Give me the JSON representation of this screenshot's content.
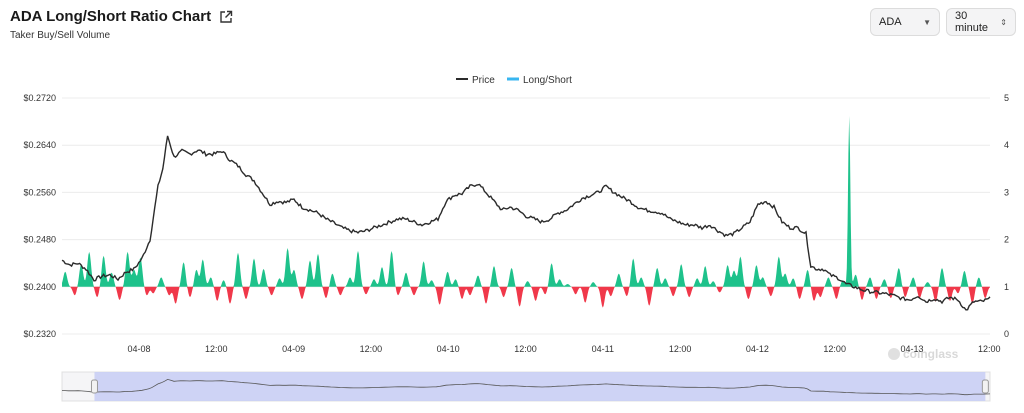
{
  "header": {
    "title": "ADA Long/Short Ratio Chart",
    "subtitle": "Taker Buy/Sell Volume",
    "coin_select": "ADA",
    "interval_select": "30 minute"
  },
  "watermark": "coinglass",
  "colors": {
    "price": "#2b2b2b",
    "long": "#1ec28b",
    "short": "#f0384a",
    "legend_ls": "#38b6f0",
    "navigator": "#c7cdf5"
  },
  "chart_data": {
    "type": "line",
    "legend": [
      "Price",
      "Long/Short"
    ],
    "x_ticks": [
      "04-08",
      "12:00",
      "04-09",
      "12:00",
      "04-10",
      "12:00",
      "04-11",
      "12:00",
      "04-12",
      "12:00",
      "04-13",
      "12:00"
    ],
    "y_left": {
      "ticks": [
        "$0.2720",
        "$0.2640",
        "$0.2560",
        "$0.2480",
        "$0.2400",
        "$0.2320"
      ],
      "range": [
        0.232,
        0.272
      ]
    },
    "y_right": {
      "ticks": [
        "5",
        "4",
        "3",
        "2",
        "1",
        "0"
      ],
      "range": [
        0,
        5
      ]
    },
    "baseline_ratio": 1,
    "price_keypoints": [
      [
        0,
        0.2445
      ],
      [
        5,
        0.2437
      ],
      [
        10,
        0.244
      ],
      [
        15,
        0.243
      ],
      [
        20,
        0.2412
      ],
      [
        25,
        0.2418
      ],
      [
        30,
        0.242
      ],
      [
        35,
        0.2413
      ],
      [
        40,
        0.2425
      ],
      [
        45,
        0.243
      ],
      [
        50,
        0.2448
      ],
      [
        55,
        0.248
      ],
      [
        60,
        0.257
      ],
      [
        63,
        0.26
      ],
      [
        66,
        0.2656
      ],
      [
        70,
        0.262
      ],
      [
        75,
        0.263
      ],
      [
        80,
        0.2625
      ],
      [
        85,
        0.2632
      ],
      [
        90,
        0.2625
      ],
      [
        95,
        0.2625
      ],
      [
        100,
        0.263
      ],
      [
        105,
        0.2615
      ],
      [
        110,
        0.2605
      ],
      [
        115,
        0.259
      ],
      [
        120,
        0.258
      ],
      [
        125,
        0.256
      ],
      [
        130,
        0.254
      ],
      [
        135,
        0.2545
      ],
      [
        140,
        0.2543
      ],
      [
        145,
        0.2548
      ],
      [
        150,
        0.2535
      ],
      [
        155,
        0.253
      ],
      [
        160,
        0.2525
      ],
      [
        165,
        0.2515
      ],
      [
        170,
        0.2508
      ],
      [
        175,
        0.25
      ],
      [
        180,
        0.2495
      ],
      [
        185,
        0.2492
      ],
      [
        190,
        0.2495
      ],
      [
        195,
        0.25
      ],
      [
        200,
        0.2505
      ],
      [
        205,
        0.251
      ],
      [
        210,
        0.2515
      ],
      [
        215,
        0.2515
      ],
      [
        220,
        0.251
      ],
      [
        225,
        0.2505
      ],
      [
        230,
        0.251
      ],
      [
        235,
        0.2515
      ],
      [
        240,
        0.2545
      ],
      [
        245,
        0.2555
      ],
      [
        250,
        0.2558
      ],
      [
        255,
        0.257
      ],
      [
        260,
        0.2575
      ],
      [
        265,
        0.256
      ],
      [
        270,
        0.2545
      ],
      [
        275,
        0.253
      ],
      [
        280,
        0.2535
      ],
      [
        285,
        0.253
      ],
      [
        290,
        0.252
      ],
      [
        295,
        0.2515
      ],
      [
        300,
        0.251
      ],
      [
        305,
        0.2515
      ],
      [
        310,
        0.2525
      ],
      [
        315,
        0.253
      ],
      [
        320,
        0.254
      ],
      [
        325,
        0.255
      ],
      [
        330,
        0.2555
      ],
      [
        335,
        0.256
      ],
      [
        340,
        0.257
      ],
      [
        345,
        0.256
      ],
      [
        350,
        0.2552
      ],
      [
        355,
        0.2545
      ],
      [
        360,
        0.2535
      ],
      [
        365,
        0.253
      ],
      [
        370,
        0.2528
      ],
      [
        375,
        0.2525
      ],
      [
        380,
        0.2515
      ],
      [
        385,
        0.251
      ],
      [
        390,
        0.2505
      ],
      [
        395,
        0.2505
      ],
      [
        400,
        0.25
      ],
      [
        405,
        0.2505
      ],
      [
        410,
        0.2495
      ],
      [
        415,
        0.2487
      ],
      [
        420,
        0.249
      ],
      [
        425,
        0.25
      ],
      [
        430,
        0.251
      ],
      [
        435,
        0.254
      ],
      [
        440,
        0.2545
      ],
      [
        445,
        0.2535
      ],
      [
        450,
        0.251
      ],
      [
        455,
        0.25
      ],
      [
        460,
        0.25
      ],
      [
        465,
        0.249
      ],
      [
        468,
        0.2435
      ],
      [
        472,
        0.243
      ],
      [
        476,
        0.243
      ],
      [
        480,
        0.242
      ],
      [
        485,
        0.2415
      ],
      [
        490,
        0.2405
      ],
      [
        495,
        0.24
      ],
      [
        500,
        0.2395
      ],
      [
        505,
        0.2392
      ],
      [
        510,
        0.239
      ],
      [
        515,
        0.2388
      ],
      [
        520,
        0.2385
      ],
      [
        525,
        0.238
      ],
      [
        530,
        0.2378
      ],
      [
        535,
        0.2385
      ],
      [
        540,
        0.2375
      ],
      [
        545,
        0.238
      ],
      [
        550,
        0.2375
      ],
      [
        555,
        0.2382
      ],
      [
        560,
        0.2378
      ],
      [
        565,
        0.236
      ],
      [
        570,
        0.2375
      ],
      [
        575,
        0.2375
      ],
      [
        580,
        0.238
      ]
    ],
    "ratio_spikes": [
      [
        2,
        1.32
      ],
      [
        8,
        0.82
      ],
      [
        12,
        1.48
      ],
      [
        17,
        1.74
      ],
      [
        22,
        0.78
      ],
      [
        26,
        1.66
      ],
      [
        31,
        1.3
      ],
      [
        36,
        0.72
      ],
      [
        41,
        1.74
      ],
      [
        45,
        1.36
      ],
      [
        49,
        1.62
      ],
      [
        53,
        0.82
      ],
      [
        57,
        0.86
      ],
      [
        62,
        1.2
      ],
      [
        67,
        0.82
      ],
      [
        71,
        0.64
      ],
      [
        76,
        1.52
      ],
      [
        80,
        0.78
      ],
      [
        84,
        1.36
      ],
      [
        88,
        1.58
      ],
      [
        93,
        1.2
      ],
      [
        97,
        0.7
      ],
      [
        101,
        1.14
      ],
      [
        105,
        0.64
      ],
      [
        110,
        1.72
      ],
      [
        115,
        0.74
      ],
      [
        120,
        1.6
      ],
      [
        126,
        1.38
      ],
      [
        131,
        0.82
      ],
      [
        136,
        1.18
      ],
      [
        141,
        1.82
      ],
      [
        145,
        1.36
      ],
      [
        150,
        0.74
      ],
      [
        155,
        1.56
      ],
      [
        160,
        1.7
      ],
      [
        165,
        0.76
      ],
      [
        169,
        1.28
      ],
      [
        174,
        0.82
      ],
      [
        180,
        1.2
      ],
      [
        185,
        1.76
      ],
      [
        190,
        0.84
      ],
      [
        195,
        1.16
      ],
      [
        200,
        1.42
      ],
      [
        206,
        1.76
      ],
      [
        210,
        0.82
      ],
      [
        215,
        1.3
      ],
      [
        220,
        0.82
      ],
      [
        226,
        1.54
      ],
      [
        231,
        1.14
      ],
      [
        236,
        0.62
      ],
      [
        241,
        1.32
      ],
      [
        246,
        1.16
      ],
      [
        250,
        0.74
      ],
      [
        255,
        0.82
      ],
      [
        260,
        1.24
      ],
      [
        265,
        0.64
      ],
      [
        270,
        1.44
      ],
      [
        276,
        0.78
      ],
      [
        281,
        1.4
      ],
      [
        286,
        0.58
      ],
      [
        291,
        1.12
      ],
      [
        296,
        0.7
      ],
      [
        302,
        0.84
      ],
      [
        306,
        1.5
      ],
      [
        311,
        1.16
      ],
      [
        316,
        1.06
      ],
      [
        321,
        0.84
      ],
      [
        327,
        0.66
      ],
      [
        332,
        1.1
      ],
      [
        338,
        0.56
      ],
      [
        343,
        0.8
      ],
      [
        348,
        1.28
      ],
      [
        353,
        0.8
      ],
      [
        357,
        1.6
      ],
      [
        362,
        1.2
      ],
      [
        367,
        0.6
      ],
      [
        372,
        1.4
      ],
      [
        377,
        1.18
      ],
      [
        382,
        0.8
      ],
      [
        387,
        1.48
      ],
      [
        392,
        0.78
      ],
      [
        397,
        1.18
      ],
      [
        402,
        1.44
      ],
      [
        407,
        1.12
      ],
      [
        411,
        0.88
      ],
      [
        416,
        1.46
      ],
      [
        420,
        1.34
      ],
      [
        424,
        1.64
      ],
      [
        429,
        0.74
      ],
      [
        434,
        1.46
      ],
      [
        438,
        1.2
      ],
      [
        443,
        0.8
      ],
      [
        448,
        1.64
      ],
      [
        452,
        1.28
      ],
      [
        457,
        1.18
      ],
      [
        461,
        0.74
      ],
      [
        466,
        1.36
      ],
      [
        470,
        0.7
      ],
      [
        474,
        0.78
      ],
      [
        479,
        1.2
      ],
      [
        484,
        0.74
      ],
      [
        488,
        1.14
      ],
      [
        492,
        4.62
      ],
      [
        496,
        1.26
      ],
      [
        500,
        0.72
      ],
      [
        505,
        1.2
      ],
      [
        509,
        0.74
      ],
      [
        514,
        1.16
      ],
      [
        518,
        0.76
      ],
      [
        523,
        1.4
      ],
      [
        527,
        0.78
      ],
      [
        532,
        1.2
      ],
      [
        536,
        0.76
      ],
      [
        541,
        1.1
      ],
      [
        546,
        0.68
      ],
      [
        550,
        1.4
      ],
      [
        555,
        0.7
      ],
      [
        560,
        0.86
      ],
      [
        564,
        1.34
      ],
      [
        569,
        0.64
      ],
      [
        573,
        1.2
      ],
      [
        577,
        0.76
      ]
    ]
  },
  "navigator": {
    "range_start": 0.035,
    "range_end": 0.995
  }
}
